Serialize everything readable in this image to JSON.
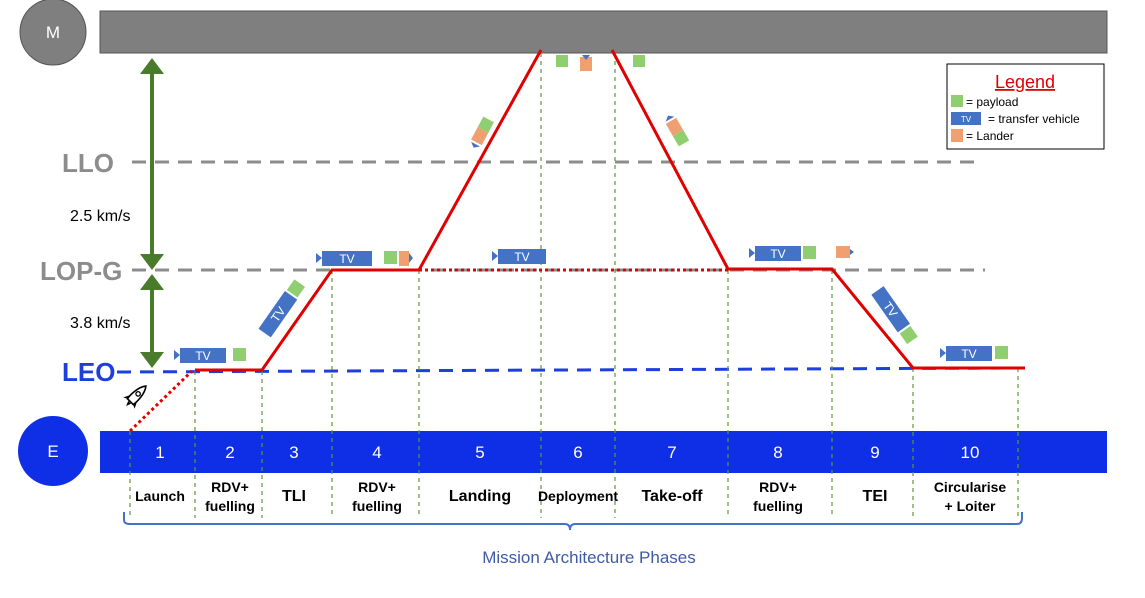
{
  "moon": {
    "label": "M"
  },
  "earth": {
    "label": "E"
  },
  "orbits": {
    "llo": "LLO",
    "lopg": "LOP-G",
    "leo": "LEO"
  },
  "delta_v": {
    "upper": "2.5 km/s",
    "lower": "3.8 km/s"
  },
  "legend": {
    "title": "Legend",
    "payload_symbol": "P1",
    "payload_text": "= payload",
    "tv_symbol": "TV",
    "tv_text": "= transfer vehicle",
    "lander_symbol": "L",
    "lander_text": "= Lander"
  },
  "vehicle_label": "TV",
  "phases": [
    {
      "num": "1",
      "name": [
        "Launch"
      ]
    },
    {
      "num": "2",
      "name": [
        "RDV+",
        "fuelling"
      ]
    },
    {
      "num": "3",
      "name": [
        "TLI"
      ]
    },
    {
      "num": "4",
      "name": [
        "RDV+",
        "fuelling"
      ]
    },
    {
      "num": "5",
      "name": [
        "Landing"
      ]
    },
    {
      "num": "6",
      "name": [
        "Deployment"
      ]
    },
    {
      "num": "7",
      "name": [
        "Take-off"
      ]
    },
    {
      "num": "8",
      "name": [
        "RDV+",
        "fuelling"
      ]
    },
    {
      "num": "9",
      "name": [
        "TEI"
      ]
    },
    {
      "num": "10",
      "name": [
        "Circularise",
        "+ Loiter"
      ]
    }
  ],
  "footer": "Mission Architecture Phases",
  "colors": {
    "moon_bar": "#7f7f7f",
    "earth_bar": "#0f2fe6",
    "trajectory": "#e00000",
    "leo_line": "#1f3fdc",
    "orbit_line": "#8c8c8c",
    "arrow": "#4a7a2c",
    "tv": "#4472c4",
    "payload": "#8fcf6f",
    "lander": "#f0a070",
    "divider": "#5a9a3a"
  }
}
